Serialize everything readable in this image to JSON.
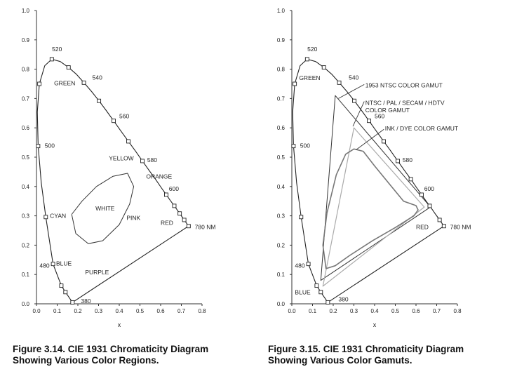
{
  "chart_data": [
    {
      "type": "line",
      "title": "",
      "xlabel": "x",
      "ylabel": "",
      "xlim": [
        0.0,
        0.8
      ],
      "ylim": [
        0.0,
        1.0
      ],
      "xticks": [
        "0.0",
        "0.1",
        "0.2",
        "0.3",
        "0.4",
        "0.5",
        "0.6",
        "0.7",
        "0.8"
      ],
      "yticks": [
        "0.0",
        "0.1",
        "0.2",
        "0.3",
        "0.4",
        "0.5",
        "0.6",
        "0.7",
        "0.8",
        "0.9",
        "1.0"
      ],
      "grid": false,
      "series": [
        {
          "kind": "spectral_locus",
          "points": [
            [
              0.174,
              0.005
            ],
            [
              0.14,
              0.04
            ],
            [
              0.12,
              0.062
            ],
            [
              0.08,
              0.136
            ],
            [
              0.045,
              0.296
            ],
            [
              0.023,
              0.413
            ],
            [
              0.008,
              0.538
            ],
            [
              0.004,
              0.654
            ],
            [
              0.014,
              0.75
            ],
            [
              0.04,
              0.812
            ],
            [
              0.074,
              0.834
            ],
            [
              0.115,
              0.826
            ],
            [
              0.155,
              0.806
            ],
            [
              0.194,
              0.782
            ],
            [
              0.229,
              0.754
            ],
            [
              0.266,
              0.724
            ],
            [
              0.302,
              0.692
            ],
            [
              0.337,
              0.659
            ],
            [
              0.373,
              0.624
            ],
            [
              0.408,
              0.589
            ],
            [
              0.444,
              0.554
            ],
            [
              0.479,
              0.52
            ],
            [
              0.512,
              0.487
            ],
            [
              0.544,
              0.455
            ],
            [
              0.575,
              0.425
            ],
            [
              0.603,
              0.396
            ],
            [
              0.627,
              0.372
            ],
            [
              0.648,
              0.351
            ],
            [
              0.666,
              0.334
            ],
            [
              0.68,
              0.32
            ],
            [
              0.692,
              0.308
            ],
            [
              0.701,
              0.299
            ],
            [
              0.714,
              0.286
            ],
            [
              0.735,
              0.265
            ]
          ],
          "closed": true
        },
        {
          "kind": "region_ellipse",
          "points": [
            [
              0.17,
              0.305
            ],
            [
              0.19,
              0.24
            ],
            [
              0.25,
              0.205
            ],
            [
              0.32,
              0.215
            ],
            [
              0.4,
              0.27
            ],
            [
              0.45,
              0.34
            ],
            [
              0.47,
              0.4
            ],
            [
              0.44,
              0.445
            ],
            [
              0.37,
              0.435
            ],
            [
              0.29,
              0.4
            ],
            [
              0.22,
              0.35
            ],
            [
              0.17,
              0.305
            ]
          ]
        }
      ],
      "markers": [
        [
          0.174,
          0.005
        ],
        [
          0.14,
          0.04
        ],
        [
          0.12,
          0.062
        ],
        [
          0.08,
          0.136
        ],
        [
          0.045,
          0.296
        ],
        [
          0.008,
          0.538
        ],
        [
          0.014,
          0.75
        ],
        [
          0.074,
          0.834
        ],
        [
          0.155,
          0.806
        ],
        [
          0.229,
          0.754
        ],
        [
          0.302,
          0.692
        ],
        [
          0.373,
          0.624
        ],
        [
          0.444,
          0.554
        ],
        [
          0.512,
          0.487
        ],
        [
          0.627,
          0.372
        ],
        [
          0.666,
          0.334
        ],
        [
          0.692,
          0.308
        ],
        [
          0.714,
          0.286
        ],
        [
          0.735,
          0.265
        ]
      ],
      "annotations": [
        {
          "text": "520",
          "x": 0.075,
          "y": 0.868
        },
        {
          "text": "540",
          "x": 0.27,
          "y": 0.772
        },
        {
          "text": "560",
          "x": 0.4,
          "y": 0.64
        },
        {
          "text": "580",
          "x": 0.535,
          "y": 0.49
        },
        {
          "text": "600",
          "x": 0.64,
          "y": 0.392
        },
        {
          "text": "780 NM",
          "x": 0.765,
          "y": 0.262
        },
        {
          "text": "500",
          "x": 0.04,
          "y": 0.54
        },
        {
          "text": "480",
          "x": 0.015,
          "y": 0.13
        },
        {
          "text": "380",
          "x": 0.215,
          "y": 0.01
        },
        {
          "text": "GREEN",
          "x": 0.085,
          "y": 0.752
        },
        {
          "text": "YELLOW",
          "x": 0.35,
          "y": 0.497
        },
        {
          "text": "ORANGE",
          "x": 0.53,
          "y": 0.434
        },
        {
          "text": "CYAN",
          "x": 0.065,
          "y": 0.3
        },
        {
          "text": "WHITE",
          "x": 0.285,
          "y": 0.325
        },
        {
          "text": "PINK",
          "x": 0.435,
          "y": 0.293
        },
        {
          "text": "RED",
          "x": 0.6,
          "y": 0.276
        },
        {
          "text": "BLUE",
          "x": 0.095,
          "y": 0.137
        },
        {
          "text": "PURPLE",
          "x": 0.235,
          "y": 0.108
        }
      ]
    },
    {
      "type": "line",
      "title": "",
      "xlabel": "x",
      "ylabel": "",
      "xlim": [
        0.0,
        0.8
      ],
      "ylim": [
        0.0,
        1.0
      ],
      "xticks": [
        "0.0",
        "0.1",
        "0.2",
        "0.3",
        "0.4",
        "0.5",
        "0.6",
        "0.7",
        "0.8"
      ],
      "yticks": [
        "0.0",
        "0.1",
        "0.2",
        "0.3",
        "0.4",
        "0.5",
        "0.6",
        "0.7",
        "0.8",
        "0.9",
        "1.0"
      ],
      "grid": false,
      "series": [
        {
          "kind": "spectral_locus",
          "points": [
            [
              0.174,
              0.005
            ],
            [
              0.14,
              0.04
            ],
            [
              0.12,
              0.062
            ],
            [
              0.08,
              0.136
            ],
            [
              0.045,
              0.296
            ],
            [
              0.023,
              0.413
            ],
            [
              0.008,
              0.538
            ],
            [
              0.004,
              0.654
            ],
            [
              0.014,
              0.75
            ],
            [
              0.04,
              0.812
            ],
            [
              0.074,
              0.834
            ],
            [
              0.115,
              0.826
            ],
            [
              0.155,
              0.806
            ],
            [
              0.194,
              0.782
            ],
            [
              0.229,
              0.754
            ],
            [
              0.266,
              0.724
            ],
            [
              0.302,
              0.692
            ],
            [
              0.337,
              0.659
            ],
            [
              0.373,
              0.624
            ],
            [
              0.408,
              0.589
            ],
            [
              0.444,
              0.554
            ],
            [
              0.479,
              0.52
            ],
            [
              0.512,
              0.487
            ],
            [
              0.544,
              0.455
            ],
            [
              0.575,
              0.425
            ],
            [
              0.603,
              0.396
            ],
            [
              0.627,
              0.372
            ],
            [
              0.648,
              0.351
            ],
            [
              0.666,
              0.334
            ],
            [
              0.68,
              0.32
            ],
            [
              0.692,
              0.308
            ],
            [
              0.701,
              0.299
            ],
            [
              0.714,
              0.286
            ],
            [
              0.735,
              0.265
            ]
          ],
          "closed": true
        },
        {
          "kind": "ntsc_1953_gamut",
          "points": [
            [
              0.67,
              0.33
            ],
            [
              0.21,
              0.71
            ],
            [
              0.14,
              0.08
            ]
          ],
          "closed": true
        },
        {
          "kind": "ntsc_pal_secam_hdtv_gamut",
          "points": [
            [
              0.64,
              0.33
            ],
            [
              0.3,
              0.6
            ],
            [
              0.15,
              0.06
            ]
          ],
          "closed": true
        },
        {
          "kind": "ink_dye_gamut",
          "points": [
            [
              0.165,
              0.12
            ],
            [
              0.15,
              0.2
            ],
            [
              0.17,
              0.31
            ],
            [
              0.215,
              0.44
            ],
            [
              0.26,
              0.51
            ],
            [
              0.3,
              0.528
            ],
            [
              0.345,
              0.52
            ],
            [
              0.4,
              0.47
            ],
            [
              0.47,
              0.41
            ],
            [
              0.54,
              0.35
            ],
            [
              0.6,
              0.335
            ],
            [
              0.61,
              0.32
            ],
            [
              0.59,
              0.3
            ],
            [
              0.5,
              0.26
            ],
            [
              0.39,
              0.215
            ],
            [
              0.28,
              0.165
            ],
            [
              0.21,
              0.13
            ]
          ],
          "closed": true
        }
      ],
      "markers": [
        [
          0.174,
          0.005
        ],
        [
          0.14,
          0.04
        ],
        [
          0.12,
          0.062
        ],
        [
          0.08,
          0.136
        ],
        [
          0.045,
          0.296
        ],
        [
          0.008,
          0.538
        ],
        [
          0.014,
          0.75
        ],
        [
          0.074,
          0.834
        ],
        [
          0.155,
          0.806
        ],
        [
          0.229,
          0.754
        ],
        [
          0.302,
          0.692
        ],
        [
          0.373,
          0.624
        ],
        [
          0.444,
          0.554
        ],
        [
          0.512,
          0.487
        ],
        [
          0.575,
          0.425
        ],
        [
          0.627,
          0.372
        ],
        [
          0.666,
          0.334
        ],
        [
          0.714,
          0.286
        ],
        [
          0.735,
          0.265
        ]
      ],
      "annotations": [
        {
          "text": "520",
          "x": 0.075,
          "y": 0.868
        },
        {
          "text": "540",
          "x": 0.275,
          "y": 0.772
        },
        {
          "text": "560",
          "x": 0.4,
          "y": 0.64
        },
        {
          "text": "580",
          "x": 0.535,
          "y": 0.49
        },
        {
          "text": "600",
          "x": 0.64,
          "y": 0.392
        },
        {
          "text": "780 NM",
          "x": 0.765,
          "y": 0.262
        },
        {
          "text": "500",
          "x": 0.04,
          "y": 0.54
        },
        {
          "text": "480",
          "x": 0.015,
          "y": 0.13
        },
        {
          "text": "380",
          "x": 0.225,
          "y": 0.015
        },
        {
          "text": "GREEN",
          "x": 0.035,
          "y": 0.77
        },
        {
          "text": "RED",
          "x": 0.6,
          "y": 0.262
        },
        {
          "text": "BLUE",
          "x": 0.015,
          "y": 0.04
        },
        {
          "text": "1953 NTSC COLOR GAMUT",
          "x": 0.355,
          "y": 0.745
        },
        {
          "text": "NTSC / PAL / SECAM / HDTV",
          "x": 0.355,
          "y": 0.685
        },
        {
          "text": "COLOR GAMUT",
          "x": 0.355,
          "y": 0.66
        },
        {
          "text": "INK / DYE COLOR GAMUT",
          "x": 0.45,
          "y": 0.598
        }
      ],
      "callouts": [
        {
          "from": [
            0.35,
            0.748
          ],
          "to": [
            0.225,
            0.7
          ]
        },
        {
          "from": [
            0.35,
            0.69
          ],
          "to": [
            0.295,
            0.605
          ]
        },
        {
          "from": [
            0.445,
            0.595
          ],
          "to": [
            0.31,
            0.525
          ]
        }
      ]
    }
  ],
  "captions": [
    {
      "line1": "Figure 3.14. CIE 1931 Chromaticity Diagram",
      "line2": "Showing Various Color Regions."
    },
    {
      "line1": "Figure 3.15. CIE 1931 Chromaticity Diagram",
      "line2": "Showing Various Color Gamuts."
    }
  ]
}
